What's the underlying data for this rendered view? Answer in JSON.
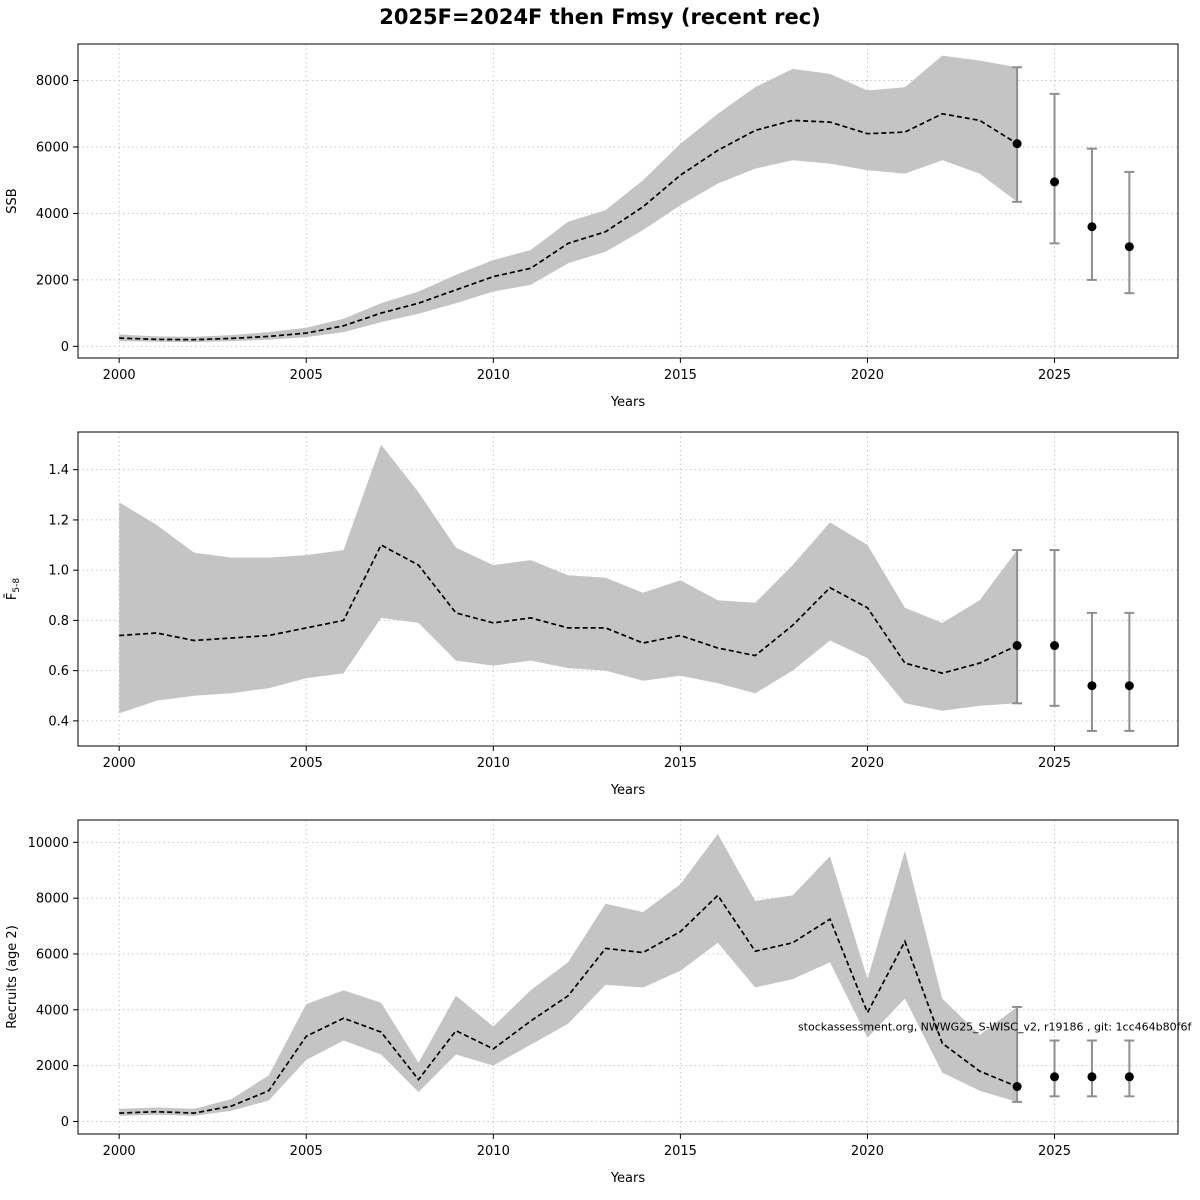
{
  "title": "2025F=2024F then Fmsy (recent rec)",
  "annotation_text": "stockassessment.org, NWWG25_S-WISC_v2, r19186 , git: 1cc464b80f6f",
  "chart_data": [
    {
      "type": "line",
      "name": "ssb",
      "ylabel": "SSB",
      "xlabel": "Years",
      "xlim": [
        1998.9,
        2028.3
      ],
      "ylim": [
        -350,
        9100
      ],
      "xticks": [
        2000,
        2005,
        2010,
        2015,
        2020,
        2025
      ],
      "yticks": [
        0,
        2000,
        4000,
        6000,
        8000
      ],
      "yticklabels": [
        "0",
        "2000",
        "4000",
        "6000",
        "8000"
      ],
      "x": [
        2000,
        2001,
        2002,
        2003,
        2004,
        2005,
        2006,
        2007,
        2008,
        2009,
        2010,
        2011,
        2012,
        2013,
        2014,
        2015,
        2016,
        2017,
        2018,
        2019,
        2020,
        2021,
        2022,
        2023,
        2024
      ],
      "median": [
        250,
        210,
        200,
        240,
        300,
        400,
        620,
        1000,
        1300,
        1700,
        2100,
        2350,
        3100,
        3450,
        4200,
        5150,
        5900,
        6500,
        6800,
        6750,
        6400,
        6450,
        7000,
        6800,
        6100
      ],
      "lower": [
        160,
        140,
        130,
        160,
        200,
        280,
        430,
        730,
        980,
        1300,
        1650,
        1850,
        2500,
        2850,
        3500,
        4250,
        4900,
        5350,
        5600,
        5500,
        5300,
        5200,
        5600,
        5200,
        4350
      ],
      "upper": [
        360,
        300,
        290,
        340,
        430,
        560,
        830,
        1300,
        1650,
        2150,
        2600,
        2900,
        3750,
        4100,
        5000,
        6100,
        7000,
        7800,
        8350,
        8200,
        7700,
        7800,
        8750,
        8600,
        8400
      ],
      "forecast": {
        "years": [
          2024,
          2025,
          2026,
          2027
        ],
        "values": [
          6100,
          4950,
          3600,
          3000
        ],
        "lo": [
          4350,
          3100,
          2000,
          1600
        ],
        "hi": [
          8400,
          7600,
          5950,
          5250
        ]
      }
    },
    {
      "type": "line",
      "name": "fbar",
      "ylabel": "F̄",
      "ylabel_sub": "5-8",
      "xlabel": "Years",
      "xlim": [
        1998.9,
        2028.3
      ],
      "ylim": [
        0.3,
        1.55
      ],
      "xticks": [
        2000,
        2005,
        2010,
        2015,
        2020,
        2025
      ],
      "yticks": [
        0.4,
        0.6,
        0.8,
        1.0,
        1.2,
        1.4
      ],
      "yticklabels": [
        "0.4",
        "0.6",
        "0.8",
        "1.0",
        "1.2",
        "1.4"
      ],
      "x": [
        2000,
        2001,
        2002,
        2003,
        2004,
        2005,
        2006,
        2007,
        2008,
        2009,
        2010,
        2011,
        2012,
        2013,
        2014,
        2015,
        2016,
        2017,
        2018,
        2019,
        2020,
        2021,
        2022,
        2023,
        2024
      ],
      "median": [
        0.74,
        0.75,
        0.72,
        0.73,
        0.74,
        0.77,
        0.8,
        1.1,
        1.02,
        0.83,
        0.79,
        0.81,
        0.77,
        0.77,
        0.71,
        0.74,
        0.69,
        0.66,
        0.78,
        0.93,
        0.85,
        0.63,
        0.59,
        0.63,
        0.7
      ],
      "lower": [
        0.43,
        0.48,
        0.5,
        0.51,
        0.53,
        0.57,
        0.59,
        0.81,
        0.79,
        0.64,
        0.62,
        0.64,
        0.61,
        0.6,
        0.56,
        0.58,
        0.55,
        0.51,
        0.6,
        0.72,
        0.65,
        0.47,
        0.44,
        0.46,
        0.47
      ],
      "upper": [
        1.27,
        1.18,
        1.07,
        1.05,
        1.05,
        1.06,
        1.08,
        1.5,
        1.31,
        1.09,
        1.02,
        1.04,
        0.98,
        0.97,
        0.91,
        0.96,
        0.88,
        0.87,
        1.02,
        1.19,
        1.1,
        0.85,
        0.79,
        0.88,
        1.08
      ],
      "forecast": {
        "years": [
          2024,
          2025,
          2026,
          2027
        ],
        "values": [
          0.7,
          0.7,
          0.54,
          0.54
        ],
        "lo": [
          0.47,
          0.46,
          0.36,
          0.36
        ],
        "hi": [
          1.08,
          1.08,
          0.83,
          0.83
        ]
      }
    },
    {
      "type": "line",
      "name": "recruits",
      "ylabel": "Recruits (age 2)",
      "xlabel": "Years",
      "xlim": [
        1998.9,
        2028.3
      ],
      "ylim": [
        -450,
        10800
      ],
      "xticks": [
        2000,
        2005,
        2010,
        2015,
        2020,
        2025
      ],
      "yticks": [
        0,
        2000,
        4000,
        6000,
        8000,
        10000
      ],
      "yticklabels": [
        "0",
        "2000",
        "4000",
        "6000",
        "8000",
        "10000"
      ],
      "x": [
        2000,
        2001,
        2002,
        2003,
        2004,
        2005,
        2006,
        2007,
        2008,
        2009,
        2010,
        2011,
        2012,
        2013,
        2014,
        2015,
        2016,
        2017,
        2018,
        2019,
        2020,
        2021,
        2022,
        2023,
        2024
      ],
      "median": [
        300,
        350,
        300,
        550,
        1100,
        3050,
        3700,
        3200,
        1500,
        3250,
        2600,
        3600,
        4500,
        6200,
        6050,
        6800,
        8100,
        6100,
        6400,
        7250,
        3900,
        6450,
        2800,
        1800,
        1250
      ],
      "lower": [
        200,
        240,
        200,
        380,
        750,
        2200,
        2900,
        2400,
        1050,
        2400,
        2000,
        2750,
        3500,
        4900,
        4800,
        5400,
        6400,
        4800,
        5100,
        5700,
        3000,
        4400,
        1750,
        1100,
        700
      ],
      "upper": [
        450,
        500,
        450,
        800,
        1650,
        4200,
        4700,
        4250,
        2100,
        4500,
        3400,
        4700,
        5700,
        7800,
        7500,
        8500,
        10300,
        7900,
        8100,
        9500,
        5100,
        9700,
        4400,
        3100,
        4100
      ],
      "forecast": {
        "years": [
          2024,
          2025,
          2026,
          2027
        ],
        "values": [
          1250,
          1600,
          1600,
          1600
        ],
        "lo": [
          700,
          900,
          900,
          900
        ],
        "hi": [
          4100,
          2900,
          2900,
          2900
        ]
      },
      "annotation": {
        "x": 2023.4,
        "y": 3250
      }
    }
  ]
}
